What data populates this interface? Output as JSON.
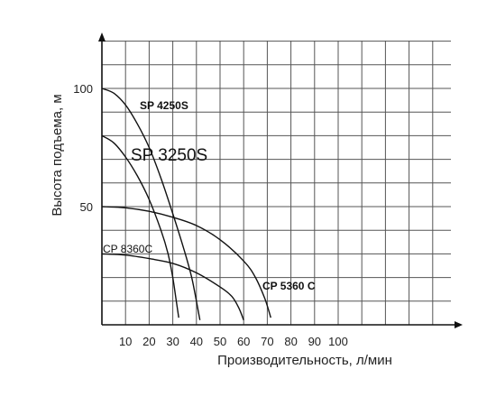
{
  "chart_data": {
    "type": "line",
    "title": "",
    "xlabel": "Производительность, л/мин",
    "ylabel": "Высота подъема, м",
    "xlim": [
      0,
      150
    ],
    "ylim": [
      0,
      120
    ],
    "grid": true,
    "x_ticks": [
      "10",
      "20",
      "30",
      "40",
      "50",
      "60",
      "70",
      "80",
      "90",
      "100"
    ],
    "y_ticks": [
      "50",
      "100"
    ],
    "series": [
      {
        "name": "SP 4250S",
        "points": [
          [
            0,
            100
          ],
          [
            5,
            98
          ],
          [
            10,
            93
          ],
          [
            15,
            85
          ],
          [
            20,
            75
          ],
          [
            25,
            62
          ],
          [
            30,
            47
          ],
          [
            35,
            31
          ],
          [
            38,
            20
          ],
          [
            40,
            10
          ],
          [
            41.5,
            2
          ]
        ]
      },
      {
        "name": "SP 3250S",
        "points": [
          [
            0,
            80
          ],
          [
            5,
            77
          ],
          [
            10,
            71
          ],
          [
            15,
            63
          ],
          [
            20,
            53
          ],
          [
            25,
            40
          ],
          [
            28,
            30
          ],
          [
            30,
            20
          ],
          [
            31.5,
            10
          ],
          [
            32.5,
            3
          ]
        ]
      },
      {
        "name": "CP 5360 C",
        "points": [
          [
            0,
            50
          ],
          [
            10,
            49.5
          ],
          [
            20,
            48
          ],
          [
            30,
            45.5
          ],
          [
            40,
            42
          ],
          [
            50,
            36
          ],
          [
            60,
            27
          ],
          [
            65,
            20
          ],
          [
            69,
            11
          ],
          [
            71.5,
            3
          ]
        ]
      },
      {
        "name": "CP 8360C",
        "points": [
          [
            0,
            30
          ],
          [
            10,
            29.5
          ],
          [
            20,
            28
          ],
          [
            30,
            26
          ],
          [
            40,
            22
          ],
          [
            50,
            16
          ],
          [
            55,
            12
          ],
          [
            58,
            7
          ],
          [
            60,
            2
          ]
        ]
      }
    ],
    "labels": [
      {
        "text": "SP 4250S",
        "series": "SP 4250S"
      },
      {
        "text": "SP 3250S",
        "series": "SP 3250S"
      },
      {
        "text": "CP 5360 C",
        "series": "CP 5360 C"
      },
      {
        "text": "CP 8360C",
        "series": "CP 8360C"
      }
    ]
  }
}
